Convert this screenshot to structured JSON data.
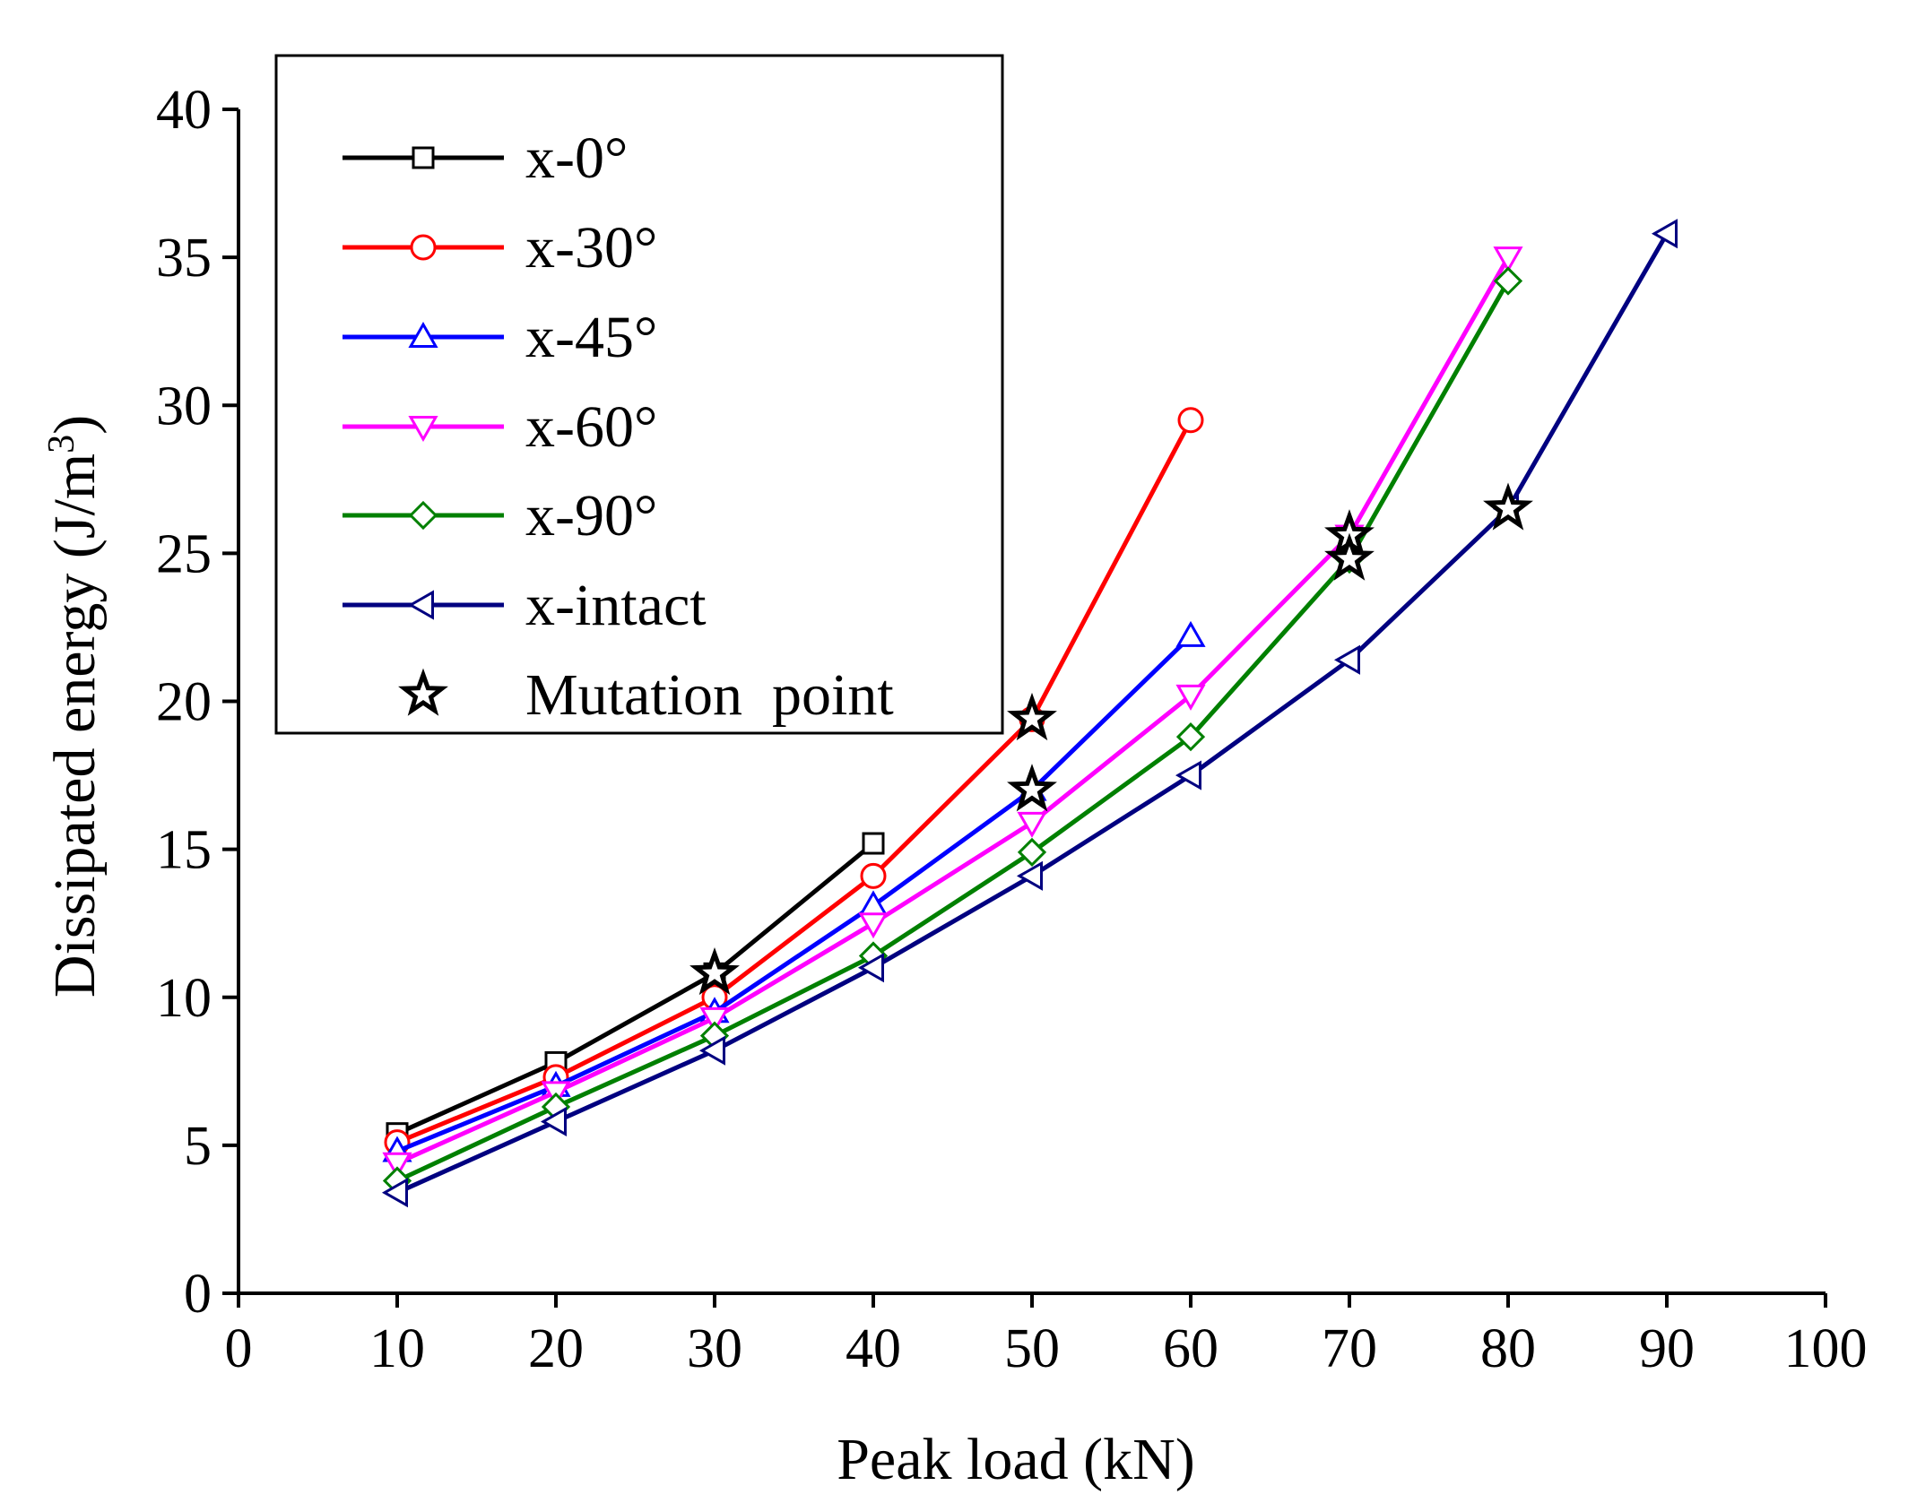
{
  "chart_data": {
    "type": "line",
    "title": "",
    "xlabel": "Peak load (kN)",
    "ylabel_main": "Dissipated energy (J/m",
    "ylabel_sup": "3",
    "ylabel_close": ")",
    "xlim": [
      0,
      100
    ],
    "ylim": [
      0,
      40
    ],
    "xticks": [
      0,
      10,
      20,
      30,
      40,
      50,
      60,
      70,
      80,
      90,
      100
    ],
    "yticks": [
      0,
      5,
      10,
      15,
      20,
      25,
      30,
      35,
      40
    ],
    "grid": false,
    "legend_position": "top-left",
    "series": [
      {
        "name": "x-0°",
        "color": "#000000",
        "marker": "square",
        "x": [
          10,
          20,
          30,
          40
        ],
        "y": [
          5.4,
          7.8,
          10.8,
          15.2
        ]
      },
      {
        "name": "x-30°",
        "color": "#ff0000",
        "marker": "circle",
        "x": [
          10,
          20,
          30,
          40,
          50,
          60
        ],
        "y": [
          5.1,
          7.3,
          10.0,
          14.1,
          19.4,
          29.5
        ]
      },
      {
        "name": "x-45°",
        "color": "#0000ff",
        "marker": "triangle-up",
        "x": [
          10,
          20,
          30,
          40,
          50,
          60
        ],
        "y": [
          4.8,
          7.0,
          9.5,
          13.1,
          17.0,
          22.2
        ]
      },
      {
        "name": "x-60°",
        "color": "#ff00ff",
        "marker": "triangle-down",
        "x": [
          10,
          20,
          30,
          40,
          50,
          60,
          70,
          80
        ],
        "y": [
          4.4,
          6.8,
          9.3,
          12.5,
          15.9,
          20.2,
          25.6,
          35.0
        ]
      },
      {
        "name": "x-90°",
        "color": "#008000",
        "marker": "diamond",
        "x": [
          10,
          20,
          30,
          40,
          50,
          60,
          70,
          80
        ],
        "y": [
          3.8,
          6.3,
          8.7,
          11.4,
          14.9,
          18.8,
          24.8,
          34.2
        ]
      },
      {
        "name": "x-intact",
        "color": "#000080",
        "marker": "triangle-left",
        "x": [
          10,
          20,
          30,
          40,
          50,
          60,
          70,
          80,
          90
        ],
        "y": [
          3.4,
          5.8,
          8.2,
          11.0,
          14.1,
          17.5,
          21.4,
          26.5,
          35.8
        ]
      }
    ],
    "mutation_points": {
      "name": "Mutation  point",
      "marker": "star",
      "color": "#000000",
      "points": [
        {
          "x": 30,
          "y": 10.8
        },
        {
          "x": 50,
          "y": 19.4
        },
        {
          "x": 50,
          "y": 17.0
        },
        {
          "x": 70,
          "y": 25.6
        },
        {
          "x": 70,
          "y": 24.8
        },
        {
          "x": 80,
          "y": 26.5
        }
      ]
    }
  }
}
